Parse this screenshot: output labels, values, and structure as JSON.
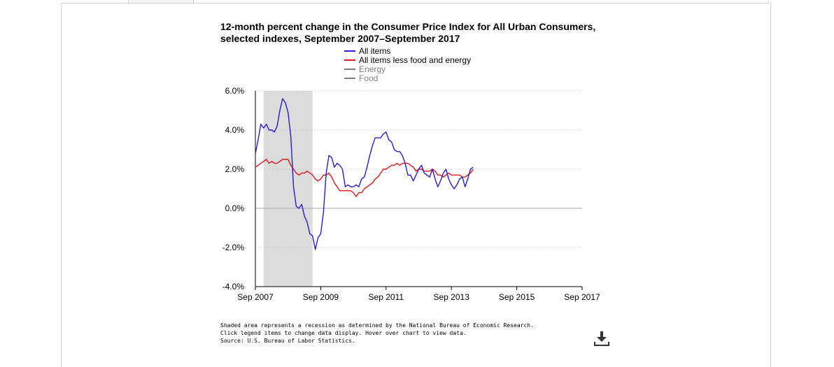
{
  "chart_data": {
    "type": "line",
    "title_line1": "12-month percent change in the Consumer Price Index for All Urban Consumers,",
    "title_line2": "selected indexes, September 2007–September 2017",
    "xlabel": "",
    "ylabel": "",
    "ylim": [
      -4.0,
      6.0
    ],
    "x_ticks": [
      "Sep 2007",
      "Sep 2009",
      "Sep 2011",
      "Sep 2013",
      "Sep 2015",
      "Sep 2017"
    ],
    "y_ticks": [
      "6.0%",
      "4.0%",
      "2.0%",
      "0.0%",
      "-2.0%",
      "-4.0%"
    ],
    "grid": true,
    "legend_position": "top-center",
    "recession": {
      "start": "Dec 2007",
      "end": "Jun 2009",
      "color": "#dcdcdc"
    },
    "series": [
      {
        "name": "All items",
        "color": "#2a1bd4",
        "active": true,
        "points": [
          [
            "2007-09",
            2.8
          ],
          [
            "2007-10",
            3.5
          ],
          [
            "2007-11",
            4.3
          ],
          [
            "2007-12",
            4.1
          ],
          [
            "2008-01",
            4.3
          ],
          [
            "2008-02",
            4.0
          ],
          [
            "2008-03",
            4.0
          ],
          [
            "2008-04",
            3.9
          ],
          [
            "2008-05",
            4.2
          ],
          [
            "2008-06",
            5.0
          ],
          [
            "2008-07",
            5.6
          ],
          [
            "2008-08",
            5.4
          ],
          [
            "2008-09",
            4.9
          ],
          [
            "2008-10",
            3.7
          ],
          [
            "2008-11",
            1.1
          ],
          [
            "2008-12",
            0.1
          ],
          [
            "2009-01",
            0.0
          ],
          [
            "2009-02",
            0.2
          ],
          [
            "2009-03",
            -0.4
          ],
          [
            "2009-04",
            -0.7
          ],
          [
            "2009-05",
            -1.3
          ],
          [
            "2009-06",
            -1.4
          ],
          [
            "2009-07",
            -2.1
          ],
          [
            "2009-08",
            -1.5
          ],
          [
            "2009-09",
            -1.3
          ],
          [
            "2009-10",
            -0.2
          ],
          [
            "2009-11",
            1.8
          ],
          [
            "2009-12",
            2.7
          ],
          [
            "2010-01",
            2.6
          ],
          [
            "2010-02",
            2.1
          ],
          [
            "2010-03",
            2.3
          ],
          [
            "2010-04",
            2.2
          ],
          [
            "2010-05",
            2.0
          ],
          [
            "2010-06",
            1.1
          ],
          [
            "2010-07",
            1.2
          ],
          [
            "2010-08",
            1.1
          ],
          [
            "2010-09",
            1.1
          ],
          [
            "2010-10",
            1.2
          ],
          [
            "2010-11",
            1.1
          ],
          [
            "2010-12",
            1.5
          ],
          [
            "2011-01",
            1.6
          ],
          [
            "2011-02",
            2.1
          ],
          [
            "2011-03",
            2.7
          ],
          [
            "2011-04",
            3.2
          ],
          [
            "2011-05",
            3.6
          ],
          [
            "2011-06",
            3.6
          ],
          [
            "2011-07",
            3.6
          ],
          [
            "2011-08",
            3.8
          ],
          [
            "2011-09",
            3.9
          ],
          [
            "2011-10",
            3.5
          ],
          [
            "2011-11",
            3.4
          ],
          [
            "2011-12",
            3.0
          ],
          [
            "2012-01",
            2.9
          ],
          [
            "2012-02",
            2.9
          ],
          [
            "2012-03",
            2.7
          ],
          [
            "2012-04",
            2.3
          ],
          [
            "2012-05",
            1.7
          ],
          [
            "2012-06",
            1.7
          ],
          [
            "2012-07",
            1.4
          ],
          [
            "2012-08",
            1.7
          ],
          [
            "2012-09",
            2.0
          ],
          [
            "2012-10",
            2.2
          ],
          [
            "2012-11",
            1.8
          ],
          [
            "2012-12",
            1.7
          ],
          [
            "2013-01",
            1.6
          ],
          [
            "2013-02",
            2.0
          ],
          [
            "2013-03",
            1.5
          ],
          [
            "2013-04",
            1.1
          ],
          [
            "2013-05",
            1.4
          ],
          [
            "2013-06",
            1.8
          ],
          [
            "2013-07",
            2.0
          ],
          [
            "2013-08",
            1.5
          ],
          [
            "2013-09",
            1.2
          ],
          [
            "2013-10",
            1.0
          ],
          [
            "2013-11",
            1.2
          ],
          [
            "2013-12",
            1.5
          ],
          [
            "2014-01",
            1.6
          ],
          [
            "2014-02",
            1.1
          ],
          [
            "2014-03",
            1.5
          ],
          [
            "2014-04",
            2.0
          ],
          [
            "2014-05",
            2.1
          ]
        ]
      },
      {
        "name": "All items less food and energy",
        "color": "#e0161b",
        "active": true,
        "points": [
          [
            "2007-09",
            2.1
          ],
          [
            "2007-10",
            2.2
          ],
          [
            "2007-11",
            2.3
          ],
          [
            "2007-12",
            2.4
          ],
          [
            "2008-01",
            2.5
          ],
          [
            "2008-02",
            2.3
          ],
          [
            "2008-03",
            2.4
          ],
          [
            "2008-04",
            2.3
          ],
          [
            "2008-05",
            2.3
          ],
          [
            "2008-06",
            2.4
          ],
          [
            "2008-07",
            2.5
          ],
          [
            "2008-08",
            2.5
          ],
          [
            "2008-09",
            2.5
          ],
          [
            "2008-10",
            2.2
          ],
          [
            "2008-11",
            2.0
          ],
          [
            "2008-12",
            1.8
          ],
          [
            "2009-01",
            1.7
          ],
          [
            "2009-02",
            1.8
          ],
          [
            "2009-03",
            1.8
          ],
          [
            "2009-04",
            1.9
          ],
          [
            "2009-05",
            1.8
          ],
          [
            "2009-06",
            1.7
          ],
          [
            "2009-07",
            1.5
          ],
          [
            "2009-08",
            1.4
          ],
          [
            "2009-09",
            1.5
          ],
          [
            "2009-10",
            1.7
          ],
          [
            "2009-11",
            1.7
          ],
          [
            "2009-12",
            1.8
          ],
          [
            "2010-01",
            1.6
          ],
          [
            "2010-02",
            1.3
          ],
          [
            "2010-03",
            1.1
          ],
          [
            "2010-04",
            0.9
          ],
          [
            "2010-05",
            0.9
          ],
          [
            "2010-06",
            0.9
          ],
          [
            "2010-07",
            0.9
          ],
          [
            "2010-08",
            0.9
          ],
          [
            "2010-09",
            0.8
          ],
          [
            "2010-10",
            0.6
          ],
          [
            "2010-11",
            0.8
          ],
          [
            "2010-12",
            0.8
          ],
          [
            "2011-01",
            1.0
          ],
          [
            "2011-02",
            1.1
          ],
          [
            "2011-03",
            1.2
          ],
          [
            "2011-04",
            1.3
          ],
          [
            "2011-05",
            1.5
          ],
          [
            "2011-06",
            1.6
          ],
          [
            "2011-07",
            1.8
          ],
          [
            "2011-08",
            2.0
          ],
          [
            "2011-09",
            2.0
          ],
          [
            "2011-10",
            2.1
          ],
          [
            "2011-11",
            2.2
          ],
          [
            "2011-12",
            2.2
          ],
          [
            "2012-01",
            2.3
          ],
          [
            "2012-02",
            2.2
          ],
          [
            "2012-03",
            2.3
          ],
          [
            "2012-04",
            2.3
          ],
          [
            "2012-05",
            2.3
          ],
          [
            "2012-06",
            2.2
          ],
          [
            "2012-07",
            2.1
          ],
          [
            "2012-08",
            1.9
          ],
          [
            "2012-09",
            2.0
          ],
          [
            "2012-10",
            2.0
          ],
          [
            "2012-11",
            1.9
          ],
          [
            "2012-12",
            1.9
          ],
          [
            "2013-01",
            1.9
          ],
          [
            "2013-02",
            2.0
          ],
          [
            "2013-03",
            1.9
          ],
          [
            "2013-04",
            1.7
          ],
          [
            "2013-05",
            1.7
          ],
          [
            "2013-06",
            1.6
          ],
          [
            "2013-07",
            1.7
          ],
          [
            "2013-08",
            1.8
          ],
          [
            "2013-09",
            1.7
          ],
          [
            "2013-10",
            1.7
          ],
          [
            "2013-11",
            1.7
          ],
          [
            "2013-12",
            1.7
          ],
          [
            "2014-01",
            1.6
          ],
          [
            "2014-02",
            1.6
          ],
          [
            "2014-03",
            1.7
          ],
          [
            "2014-04",
            1.8
          ],
          [
            "2014-05",
            2.0
          ]
        ]
      },
      {
        "name": "Energy",
        "color": "#808080",
        "active": false,
        "points": []
      },
      {
        "name": "Food",
        "color": "#808080",
        "active": false,
        "points": []
      }
    ]
  },
  "notes": {
    "line1": "Shaded area represents a recession as determined by the National Bureau of Economic Research.",
    "line2": "Click legend items to change data display. Hover over chart to view data.",
    "line3": "Source: U.S. Bureau of Labor Statistics."
  },
  "icons": {
    "download": "download-icon"
  }
}
